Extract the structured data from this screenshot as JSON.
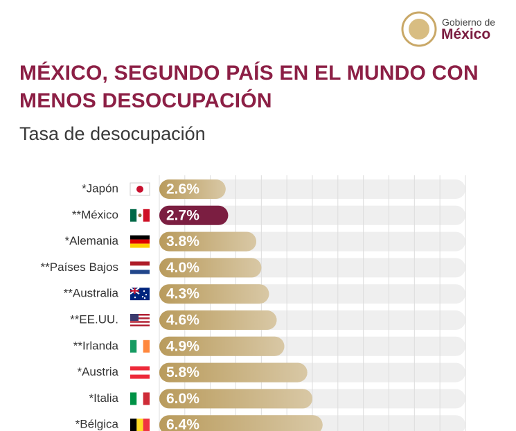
{
  "logo": {
    "line1": "Gobierno de",
    "line2": "México"
  },
  "chart_data": {
    "type": "hbar",
    "title": "MÉXICO, SEGUNDO PAÍS EN EL MUNDO CON MENOS DESOCUPACIÓN",
    "subtitle": "Tasa de desocupación",
    "categories": [
      "*Japón",
      "**México",
      "*Alemania",
      "**Países Bajos",
      "**Australia",
      "**EE.UU.",
      "**Irlanda",
      "*Austria",
      "*Italia",
      "*Bélgica"
    ],
    "values": [
      2.6,
      2.7,
      3.8,
      4.0,
      4.3,
      4.6,
      4.9,
      5.8,
      6.0,
      6.4
    ],
    "value_labels": [
      "2.6%",
      "2.7%",
      "3.8%",
      "4.0%",
      "4.3%",
      "4.6%",
      "4.9%",
      "5.8%",
      "6.0%",
      "6.4%"
    ],
    "colors": [
      "#b99b5c",
      "#7b1e41",
      "#b99b5c",
      "#b99b5c",
      "#b99b5c",
      "#b99b5c",
      "#b99b5c",
      "#b99b5c",
      "#b99b5c",
      "#b99b5c"
    ],
    "xlim": [
      0,
      12
    ],
    "xticks": [
      0,
      1,
      2,
      3,
      4,
      5,
      6,
      7,
      8,
      9,
      10,
      11,
      12
    ],
    "grid": true
  }
}
